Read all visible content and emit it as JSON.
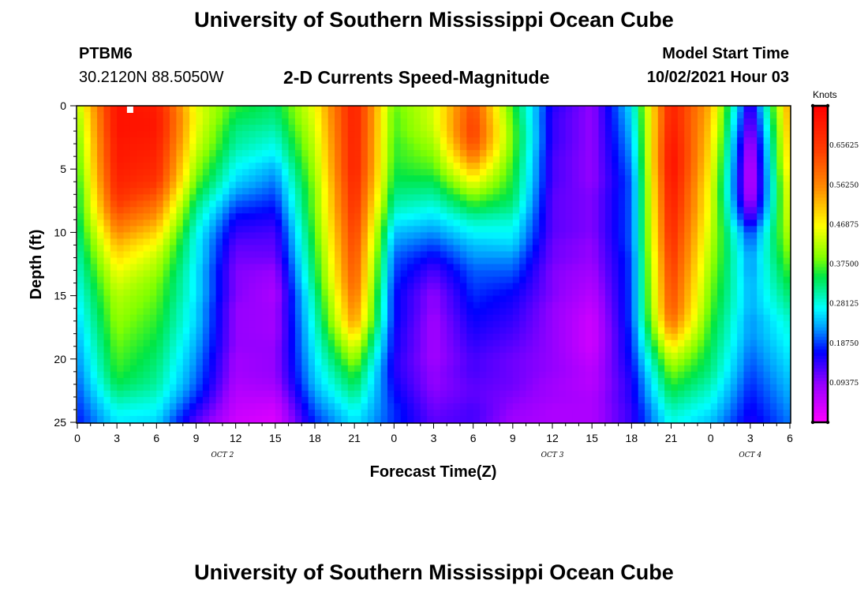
{
  "header": {
    "title": "University of Southern Mississippi Ocean Cube",
    "station_id": "PTBM6",
    "coordinates": "30.2120N  88.5050W",
    "product": "2-D Currents Speed-Magnitude",
    "model_start_label": "Model Start Time",
    "model_start_value": "10/02/2021 Hour 03"
  },
  "footer": {
    "title": "University of Southern Mississippi Ocean Cube"
  },
  "chart_data": {
    "type": "heatmap",
    "title": "2-D Currents Speed-Magnitude",
    "xlabel": "Forecast Time(Z)",
    "ylabel": "Depth (ft)",
    "x_range_hours": [
      0,
      54
    ],
    "x_ticks": [
      "0",
      "3",
      "6",
      "9",
      "12",
      "15",
      "18",
      "21",
      "0",
      "3",
      "6",
      "9",
      "12",
      "15",
      "18",
      "21",
      "0",
      "3",
      "6"
    ],
    "x_tick_hours": [
      0,
      3,
      6,
      9,
      12,
      15,
      18,
      21,
      24,
      27,
      30,
      33,
      36,
      39,
      42,
      45,
      48,
      51,
      54
    ],
    "date_labels": [
      {
        "text": "OCT 2",
        "hour": 11
      },
      {
        "text": "OCT 3",
        "hour": 36
      },
      {
        "text": "OCT 4",
        "hour": 51
      }
    ],
    "y_range": [
      0,
      25
    ],
    "y_ticks": [
      "0",
      "5",
      "10",
      "15",
      "20",
      "25"
    ],
    "y_tick_values": [
      0,
      5,
      10,
      15,
      20,
      25
    ],
    "y_inverted": true,
    "colorbar": {
      "units": "Knots",
      "range": [
        0.0,
        0.75
      ],
      "tick_labels": [
        "0.65625",
        "0.56250",
        "0.46875",
        "0.37500",
        "0.28125",
        "0.18750",
        "0.09375"
      ],
      "tick_values": [
        0.65625,
        0.5625,
        0.46875,
        0.375,
        0.28125,
        0.1875,
        0.09375
      ]
    },
    "marker": {
      "hour": 4,
      "depth": 0,
      "color": "#ffffff"
    },
    "grid_depths": [
      0,
      1,
      2,
      3,
      4,
      5,
      6,
      7,
      8,
      9,
      10,
      11,
      12,
      13,
      14,
      15,
      16,
      17,
      18,
      19,
      20,
      21,
      22,
      23,
      24,
      25
    ],
    "grid_hours": [
      0,
      3,
      6,
      9,
      12,
      15,
      18,
      21,
      24,
      27,
      30,
      33,
      36,
      39,
      42,
      45,
      48,
      51,
      54
    ],
    "speed_knots": [
      [
        0.42,
        0.72,
        0.7,
        0.45,
        0.36,
        0.33,
        0.46,
        0.7,
        0.38,
        0.44,
        0.63,
        0.36,
        0.15,
        0.09,
        0.26,
        0.7,
        0.52,
        0.12,
        0.55
      ],
      [
        0.4,
        0.72,
        0.71,
        0.46,
        0.34,
        0.32,
        0.45,
        0.7,
        0.37,
        0.44,
        0.64,
        0.37,
        0.14,
        0.09,
        0.25,
        0.7,
        0.51,
        0.1,
        0.54
      ],
      [
        0.39,
        0.72,
        0.71,
        0.45,
        0.32,
        0.3,
        0.44,
        0.7,
        0.37,
        0.43,
        0.65,
        0.38,
        0.14,
        0.09,
        0.24,
        0.71,
        0.5,
        0.08,
        0.53
      ],
      [
        0.38,
        0.71,
        0.7,
        0.44,
        0.31,
        0.28,
        0.43,
        0.7,
        0.36,
        0.41,
        0.63,
        0.38,
        0.14,
        0.09,
        0.23,
        0.72,
        0.49,
        0.06,
        0.52
      ],
      [
        0.37,
        0.71,
        0.69,
        0.42,
        0.29,
        0.26,
        0.42,
        0.7,
        0.36,
        0.39,
        0.58,
        0.37,
        0.13,
        0.09,
        0.22,
        0.73,
        0.48,
        0.05,
        0.51
      ],
      [
        0.36,
        0.7,
        0.68,
        0.4,
        0.27,
        0.23,
        0.41,
        0.7,
        0.35,
        0.37,
        0.52,
        0.36,
        0.13,
        0.09,
        0.21,
        0.73,
        0.47,
        0.04,
        0.5
      ],
      [
        0.35,
        0.69,
        0.66,
        0.38,
        0.25,
        0.21,
        0.4,
        0.69,
        0.34,
        0.34,
        0.46,
        0.35,
        0.13,
        0.09,
        0.2,
        0.72,
        0.46,
        0.04,
        0.48
      ],
      [
        0.34,
        0.67,
        0.62,
        0.35,
        0.22,
        0.19,
        0.39,
        0.68,
        0.32,
        0.31,
        0.4,
        0.34,
        0.12,
        0.1,
        0.2,
        0.71,
        0.45,
        0.05,
        0.47
      ],
      [
        0.34,
        0.64,
        0.58,
        0.32,
        0.19,
        0.17,
        0.39,
        0.67,
        0.3,
        0.28,
        0.35,
        0.32,
        0.12,
        0.1,
        0.2,
        0.7,
        0.45,
        0.08,
        0.46
      ],
      [
        0.33,
        0.6,
        0.54,
        0.3,
        0.16,
        0.15,
        0.38,
        0.66,
        0.27,
        0.25,
        0.3,
        0.29,
        0.12,
        0.1,
        0.2,
        0.69,
        0.44,
        0.12,
        0.45
      ],
      [
        0.32,
        0.56,
        0.5,
        0.28,
        0.14,
        0.13,
        0.37,
        0.65,
        0.24,
        0.22,
        0.27,
        0.27,
        0.12,
        0.1,
        0.2,
        0.68,
        0.43,
        0.18,
        0.43
      ],
      [
        0.31,
        0.52,
        0.46,
        0.27,
        0.12,
        0.12,
        0.36,
        0.64,
        0.22,
        0.19,
        0.24,
        0.25,
        0.11,
        0.09,
        0.2,
        0.67,
        0.42,
        0.2,
        0.41
      ],
      [
        0.3,
        0.49,
        0.43,
        0.27,
        0.11,
        0.11,
        0.35,
        0.63,
        0.2,
        0.16,
        0.22,
        0.22,
        0.11,
        0.09,
        0.19,
        0.66,
        0.41,
        0.22,
        0.39
      ],
      [
        0.29,
        0.46,
        0.41,
        0.26,
        0.1,
        0.09,
        0.34,
        0.62,
        0.19,
        0.13,
        0.2,
        0.2,
        0.1,
        0.08,
        0.19,
        0.65,
        0.4,
        0.22,
        0.37
      ],
      [
        0.28,
        0.44,
        0.39,
        0.26,
        0.1,
        0.08,
        0.33,
        0.61,
        0.18,
        0.11,
        0.19,
        0.18,
        0.1,
        0.07,
        0.19,
        0.64,
        0.39,
        0.23,
        0.35
      ],
      [
        0.27,
        0.42,
        0.38,
        0.26,
        0.1,
        0.07,
        0.31,
        0.59,
        0.17,
        0.09,
        0.18,
        0.16,
        0.1,
        0.06,
        0.19,
        0.63,
        0.38,
        0.23,
        0.33
      ],
      [
        0.26,
        0.41,
        0.37,
        0.25,
        0.09,
        0.08,
        0.3,
        0.57,
        0.17,
        0.09,
        0.17,
        0.15,
        0.09,
        0.05,
        0.19,
        0.62,
        0.37,
        0.23,
        0.31
      ],
      [
        0.25,
        0.4,
        0.36,
        0.25,
        0.09,
        0.08,
        0.29,
        0.55,
        0.17,
        0.08,
        0.16,
        0.14,
        0.09,
        0.04,
        0.19,
        0.59,
        0.36,
        0.22,
        0.29
      ],
      [
        0.24,
        0.39,
        0.35,
        0.24,
        0.09,
        0.08,
        0.28,
        0.5,
        0.16,
        0.08,
        0.15,
        0.13,
        0.09,
        0.04,
        0.18,
        0.54,
        0.35,
        0.22,
        0.28
      ],
      [
        0.23,
        0.38,
        0.34,
        0.23,
        0.09,
        0.09,
        0.27,
        0.45,
        0.16,
        0.08,
        0.14,
        0.12,
        0.09,
        0.04,
        0.18,
        0.48,
        0.34,
        0.21,
        0.27
      ],
      [
        0.22,
        0.37,
        0.33,
        0.22,
        0.08,
        0.09,
        0.26,
        0.41,
        0.15,
        0.08,
        0.13,
        0.11,
        0.09,
        0.05,
        0.17,
        0.43,
        0.33,
        0.2,
        0.26
      ],
      [
        0.21,
        0.36,
        0.32,
        0.21,
        0.08,
        0.09,
        0.25,
        0.37,
        0.15,
        0.09,
        0.13,
        0.11,
        0.09,
        0.06,
        0.16,
        0.39,
        0.32,
        0.19,
        0.25
      ],
      [
        0.2,
        0.34,
        0.31,
        0.2,
        0.07,
        0.08,
        0.24,
        0.34,
        0.16,
        0.09,
        0.12,
        0.11,
        0.08,
        0.06,
        0.15,
        0.36,
        0.3,
        0.18,
        0.24
      ],
      [
        0.19,
        0.31,
        0.29,
        0.18,
        0.06,
        0.06,
        0.22,
        0.31,
        0.17,
        0.1,
        0.12,
        0.1,
        0.08,
        0.07,
        0.15,
        0.33,
        0.28,
        0.17,
        0.23
      ],
      [
        0.18,
        0.28,
        0.27,
        0.15,
        0.05,
        0.04,
        0.2,
        0.28,
        0.18,
        0.11,
        0.13,
        0.09,
        0.07,
        0.07,
        0.14,
        0.3,
        0.26,
        0.16,
        0.22
      ],
      [
        0.17,
        0.26,
        0.25,
        0.12,
        0.04,
        0.03,
        0.18,
        0.26,
        0.18,
        0.12,
        0.13,
        0.08,
        0.07,
        0.07,
        0.14,
        0.28,
        0.24,
        0.15,
        0.21
      ]
    ]
  }
}
